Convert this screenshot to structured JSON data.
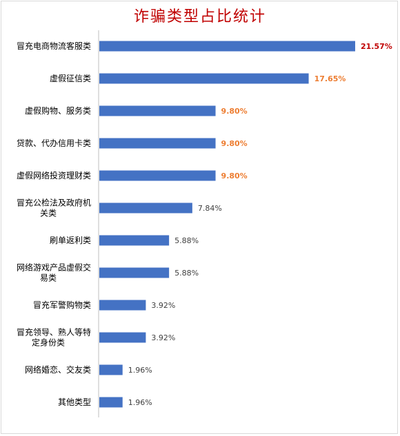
{
  "chart_data": {
    "type": "bar",
    "orientation": "horizontal",
    "title": "诈骗类型占比统计",
    "xlim": [
      0,
      25
    ],
    "grid": false,
    "categories": [
      [
        "冒充电商物流客服类"
      ],
      [
        "虚假征信类"
      ],
      [
        "虚假购物、服务类"
      ],
      [
        "贷款、代办信用卡类"
      ],
      [
        "虚假网络投资理财类"
      ],
      [
        "冒充公检法及政府机",
        "关类"
      ],
      [
        "刷单返利类"
      ],
      [
        "网络游戏产品虚假交",
        "易类"
      ],
      [
        "冒充军警购物类"
      ],
      [
        "冒充领导、熟人等特",
        "定身份类"
      ],
      [
        "网络婚恋、交友类"
      ],
      [
        "其他类型"
      ]
    ],
    "values": [
      21.57,
      17.65,
      9.8,
      9.8,
      9.8,
      7.84,
      5.88,
      5.88,
      3.92,
      3.92,
      1.96,
      1.96
    ],
    "data_labels": [
      "21.57%",
      "17.65%",
      "9.80%",
      "9.80%",
      "9.80%",
      "7.84%",
      "5.88%",
      "5.88%",
      "3.92%",
      "3.92%",
      "1.96%",
      "1.96%"
    ],
    "colors": {
      "bar": "#4472c4",
      "title": "#c00000",
      "label_top": "#c00000",
      "label_high": "#ed7d31",
      "label_normal": "#404040",
      "axis": "#bfbfbf",
      "category_text": "#000000"
    }
  }
}
